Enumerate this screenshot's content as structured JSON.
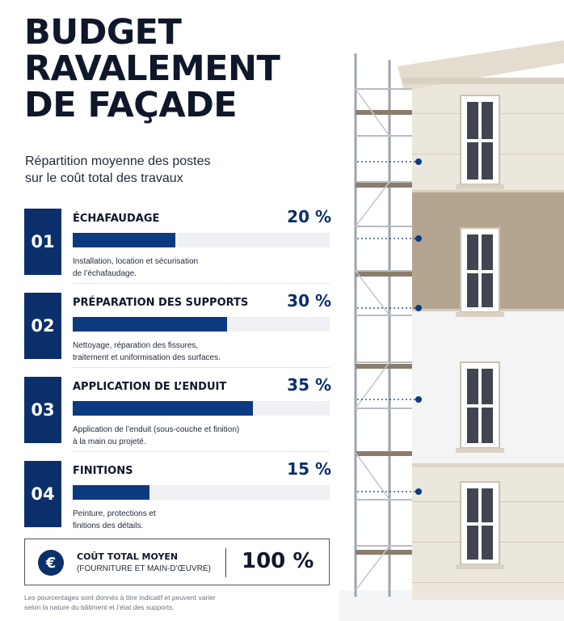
{
  "title": {
    "line1": "BUDGET",
    "line2": "RAVALEMENT",
    "line3": "DE FAÇADE"
  },
  "subtitle": {
    "line1": "Répartition moyenne des postes",
    "line2": "sur le coût total des travaux"
  },
  "chart_data": {
    "type": "bar",
    "orientation": "horizontal",
    "value_unit": "%",
    "xlim": [
      0,
      100
    ],
    "categories": [
      "ÉCHAFAUDAGE",
      "PRÉPARATION DES SUPPORTS",
      "APPLICATION DE L’ENDUIT",
      "FINITIONS"
    ],
    "values": [
      20,
      30,
      35,
      15
    ],
    "color": "#0b3a80"
  },
  "items": [
    {
      "number": "01",
      "title": "ÉCHAFAUDAGE",
      "percent_label": "20 %",
      "desc1": "Installation, location et sécurisation",
      "desc2": "de l’échafaudage."
    },
    {
      "number": "02",
      "title": "PRÉPARATION DES SUPPORTS",
      "percent_label": "30 %",
      "desc1": "Nettoyage, réparation des fissures,",
      "desc2": "traitement et uniformisation des surfaces."
    },
    {
      "number": "03",
      "title": "APPLICATION DE L’ENDUIT",
      "percent_label": "35 %",
      "desc1": "Application de l’enduit (sous-couche et finition)",
      "desc2": "à la main ou projeté."
    },
    {
      "number": "04",
      "title": "FINITIONS",
      "percent_label": "15 %",
      "desc1": "Peinture, protections et",
      "desc2": "finitions des détails."
    }
  ],
  "total": {
    "icon": "euro-icon",
    "symbol": "€",
    "label": "COÛT TOTAL MOYEN",
    "sublabel": "(FOURNITURE ET MAIN-D’ŒUVRE)",
    "value": "100 %"
  },
  "footnote": {
    "line1": "Les pourcentages sont donnés à titre indicatif et peuvent varier",
    "line2": "selon la nature du bâtiment et l’état des supports."
  },
  "colors": {
    "navy": "#0b2f6b",
    "bar": "#0b3a80",
    "track": "#eef0f3",
    "text": "#0f172a"
  }
}
